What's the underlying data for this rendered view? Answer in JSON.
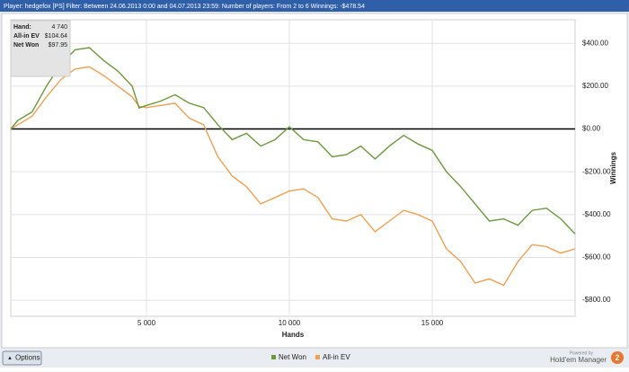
{
  "chart_data": {
    "type": "line",
    "title": "Player: hedgefox [PS]  Filter: Between 24.06.2013 0:00 and 04.07.2013 23:59: Number of players: From 2 to 6  Winnings: -$478.54",
    "x_label": "Hands",
    "y_label": "Winnings",
    "x": [
      250,
      500,
      1000,
      1500,
      2000,
      2500,
      3000,
      3500,
      4000,
      4500,
      4740,
      5000,
      5500,
      6000,
      6500,
      7000,
      7500,
      8000,
      8500,
      9000,
      9500,
      10000,
      10500,
      11000,
      11500,
      12000,
      12500,
      13000,
      13500,
      14000,
      14500,
      15000,
      15500,
      16000,
      16500,
      17000,
      17500,
      18000,
      18500,
      19000,
      19500,
      20000
    ],
    "series": [
      {
        "name": "Net Won",
        "color": "#6a9a3a",
        "values": [
          0,
          40,
          80,
          200,
          300,
          370,
          380,
          320,
          270,
          200,
          98,
          110,
          130,
          160,
          120,
          100,
          20,
          -50,
          -20,
          -80,
          -50,
          10,
          -50,
          -60,
          -130,
          -120,
          -80,
          -140,
          -80,
          -30,
          -70,
          -100,
          -200,
          -270,
          -350,
          -430,
          -420,
          -450,
          -380,
          -370,
          -420,
          -490
        ]
      },
      {
        "name": "All-in EV",
        "color": "#f0a050",
        "values": [
          0,
          20,
          60,
          150,
          230,
          280,
          290,
          250,
          200,
          150,
          105,
          100,
          110,
          120,
          50,
          20,
          -130,
          -220,
          -270,
          -350,
          -320,
          -290,
          -280,
          -320,
          -420,
          -430,
          -400,
          -480,
          -430,
          -380,
          -400,
          -430,
          -560,
          -620,
          -720,
          -700,
          -730,
          -620,
          -540,
          -550,
          -580,
          -560
        ]
      }
    ],
    "xlim": [
      250,
      20000
    ],
    "xticks": [
      {
        "value": 5000,
        "label": "5 000"
      },
      {
        "value": 10000,
        "label": "10 000"
      },
      {
        "value": 15000,
        "label": "15 000"
      }
    ],
    "ylim": [
      -875,
      510
    ],
    "yticks": [
      {
        "value": 400,
        "label": "$400.00"
      },
      {
        "value": 200,
        "label": "$200.00"
      },
      {
        "value": 0,
        "label": "$0.00"
      },
      {
        "value": -200,
        "label": "-$200.00"
      },
      {
        "value": -400,
        "label": "-$400.00"
      },
      {
        "value": -600,
        "label": "-$600.00"
      },
      {
        "value": -800,
        "label": "-$800.00"
      }
    ],
    "grid": true,
    "info": [
      {
        "label": "Hand:",
        "value": "4 740"
      },
      {
        "label": "All-in EV",
        "value": "$104.64"
      },
      {
        "label": "Net Won",
        "value": "$97.95"
      }
    ]
  },
  "ui": {
    "button": "Options",
    "powered": "Powered by",
    "brand": "Hold'em Manager",
    "badge": "2"
  }
}
